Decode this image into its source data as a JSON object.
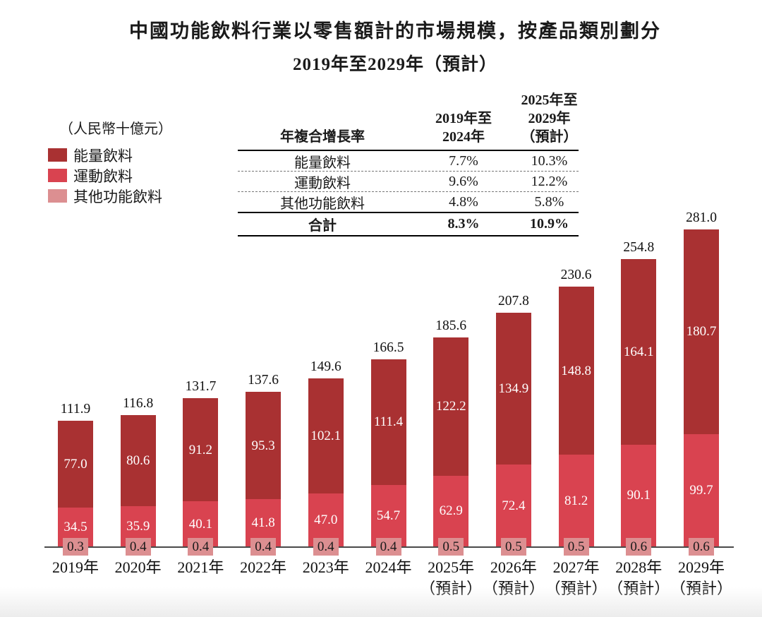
{
  "title": {
    "line1": "中國功能飲料行業以零售額計的市場規模，按產品類別劃分",
    "line2": "2019年至2029年（預計）"
  },
  "unit_label": "（人民幣十億元）",
  "legend": {
    "items": [
      {
        "key": "energy",
        "label": "能量飲料",
        "color": "#A93132"
      },
      {
        "key": "sports",
        "label": "運動飲料",
        "color": "#D94350"
      },
      {
        "key": "other",
        "label": "其他功能飲料",
        "color": "#DC8F91"
      }
    ]
  },
  "cagr_table": {
    "header": {
      "col1": "年複合增長率",
      "col2_line1": "2019年至",
      "col2_line2": "2024年",
      "col3_line1": "2025年至",
      "col3_line2": "2029年",
      "col3_line3": "（預計）"
    },
    "rows": [
      {
        "label": "能量飲料",
        "cagr_2019_2024": "7.7%",
        "cagr_2025_2029": "10.3%"
      },
      {
        "label": "運動飲料",
        "cagr_2019_2024": "9.6%",
        "cagr_2025_2029": "12.2%"
      },
      {
        "label": "其他功能飲料",
        "cagr_2019_2024": "4.8%",
        "cagr_2025_2029": "5.8%"
      },
      {
        "label": "合計",
        "cagr_2019_2024": "8.3%",
        "cagr_2025_2029": "10.9%"
      }
    ]
  },
  "chart_data": {
    "type": "bar",
    "stacked": true,
    "unit": "人民幣十億元",
    "categories": [
      {
        "label": "2019年",
        "sub": ""
      },
      {
        "label": "2020年",
        "sub": ""
      },
      {
        "label": "2021年",
        "sub": ""
      },
      {
        "label": "2022年",
        "sub": ""
      },
      {
        "label": "2023年",
        "sub": ""
      },
      {
        "label": "2024年",
        "sub": ""
      },
      {
        "label": "2025年",
        "sub": "（預計）"
      },
      {
        "label": "2026年",
        "sub": "（預計）"
      },
      {
        "label": "2027年",
        "sub": "（預計）"
      },
      {
        "label": "2028年",
        "sub": "（預計）"
      },
      {
        "label": "2029年",
        "sub": "（預計）"
      }
    ],
    "series": [
      {
        "name": "能量飲料",
        "color": "#A93132",
        "values": [
          77.0,
          80.6,
          91.2,
          95.3,
          102.1,
          111.4,
          122.2,
          134.9,
          148.8,
          164.1,
          180.7
        ]
      },
      {
        "name": "運動飲料",
        "color": "#D94350",
        "values": [
          34.5,
          35.9,
          40.1,
          41.8,
          47.0,
          54.7,
          62.9,
          72.4,
          81.2,
          90.1,
          99.7
        ]
      },
      {
        "name": "其他功能飲料",
        "color": "#DC8F91",
        "values": [
          0.3,
          0.4,
          0.4,
          0.4,
          0.4,
          0.4,
          0.5,
          0.5,
          0.5,
          0.6,
          0.6
        ]
      }
    ],
    "totals": [
      111.9,
      116.8,
      131.7,
      137.6,
      149.6,
      166.5,
      185.6,
      207.8,
      230.6,
      254.8,
      281.0
    ],
    "ylim": [
      0,
      290
    ],
    "grid": false,
    "legend_position": "left-top",
    "colors": {
      "axis": "#4a4a4a",
      "badge_bg": "#DC8F91",
      "badge_text": "#1a1a1a"
    }
  }
}
